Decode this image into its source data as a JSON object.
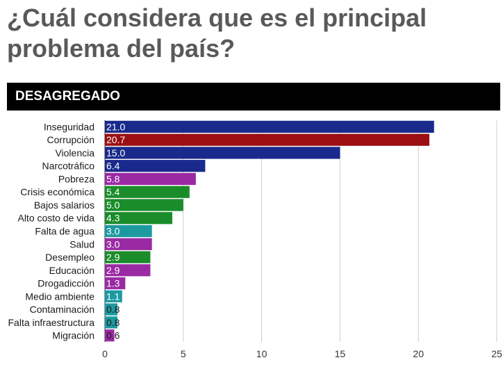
{
  "title": "¿Cuál considera que es el principal problema del país?",
  "section_label": "DESAGREGADO",
  "colors": {
    "navy": "#1a2a8c",
    "red": "#9b0f12",
    "purple": "#9a2aa3",
    "green": "#1a8c2a",
    "teal": "#1c9aa0",
    "banner": "#000000",
    "title": "#595959"
  },
  "chart_data": {
    "type": "bar",
    "orientation": "horizontal",
    "categories": [
      "Inseguridad",
      "Corrupción",
      "Violencia",
      "Narcotráfico",
      "Pobreza",
      "Crisis económica",
      "Bajos salarios",
      "Alto costo de vida",
      "Falta de agua",
      "Salud",
      "Desempleo",
      "Educación",
      "Drogadicción",
      "Medio ambiente",
      "Contaminación",
      "Falta infraestructura",
      "Migración"
    ],
    "values": [
      21.0,
      20.7,
      15.0,
      6.4,
      5.8,
      5.4,
      5.0,
      4.3,
      3.0,
      3.0,
      2.9,
      2.9,
      1.3,
      1.1,
      0.8,
      0.8,
      0.6
    ],
    "value_labels": [
      "21.0",
      "20.7",
      "15.0",
      "6.4",
      "5.8",
      "5.4",
      "5.0",
      "4.3",
      "3.0",
      "3.0",
      "2.9",
      "2.9",
      "1.3",
      "1.1",
      "0.8",
      "0.8",
      "0.6"
    ],
    "bar_colors": [
      "navy",
      "red",
      "navy",
      "navy",
      "purple",
      "green",
      "green",
      "green",
      "teal",
      "purple",
      "green",
      "purple",
      "purple",
      "teal",
      "teal",
      "teal",
      "purple"
    ],
    "xlim": [
      0,
      25
    ],
    "xticks": [
      "0",
      "5",
      "10",
      "15",
      "20",
      "25"
    ],
    "grid": true,
    "legend": "none"
  }
}
